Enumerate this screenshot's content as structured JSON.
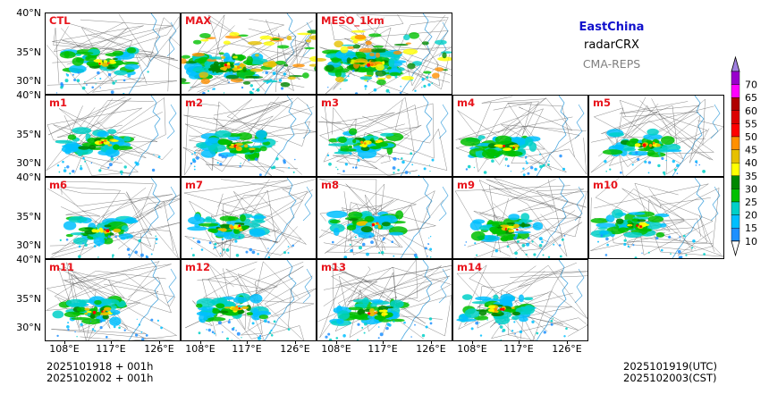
{
  "header": {
    "region": "EastChina",
    "product": "radarCRX",
    "system": "CMA-REPS",
    "region_color": "#1010cc",
    "product_color": "#000000",
    "system_color": "#808080"
  },
  "panels": [
    {
      "label": "CTL",
      "row": 0,
      "col": 0,
      "intensity": 1.0
    },
    {
      "label": "MAX",
      "row": 0,
      "col": 1,
      "intensity": 1.6
    },
    {
      "label": "MESO_1km",
      "row": 0,
      "col": 2,
      "intensity": 1.8
    },
    {
      "label": "m1",
      "row": 1,
      "col": 0,
      "intensity": 1.0
    },
    {
      "label": "m2",
      "row": 1,
      "col": 1,
      "intensity": 1.0
    },
    {
      "label": "m3",
      "row": 1,
      "col": 2,
      "intensity": 0.9
    },
    {
      "label": "m4",
      "row": 1,
      "col": 3,
      "intensity": 1.1
    },
    {
      "label": "m5",
      "row": 1,
      "col": 4,
      "intensity": 0.9
    },
    {
      "label": "m6",
      "row": 2,
      "col": 0,
      "intensity": 1.0
    },
    {
      "label": "m7",
      "row": 2,
      "col": 1,
      "intensity": 1.0
    },
    {
      "label": "m8",
      "row": 2,
      "col": 2,
      "intensity": 0.9
    },
    {
      "label": "m9",
      "row": 2,
      "col": 3,
      "intensity": 1.0
    },
    {
      "label": "m10",
      "row": 2,
      "col": 4,
      "intensity": 1.0
    },
    {
      "label": "m11",
      "row": 3,
      "col": 0,
      "intensity": 1.0
    },
    {
      "label": "m12",
      "row": 3,
      "col": 1,
      "intensity": 1.0
    },
    {
      "label": "m13",
      "row": 3,
      "col": 2,
      "intensity": 1.0
    },
    {
      "label": "m14",
      "row": 3,
      "col": 3,
      "intensity": 1.0
    }
  ],
  "axes": {
    "lat_ticks": [
      "40°N",
      "35°N",
      "30°N"
    ],
    "lon_ticks": [
      "108°E",
      "117°E",
      "126°E"
    ]
  },
  "colorbar": {
    "levels": [
      "10",
      "15",
      "20",
      "25",
      "30",
      "35",
      "40",
      "45",
      "50",
      "55",
      "60",
      "65",
      "70"
    ],
    "colors": [
      "#1e90ff",
      "#00bfff",
      "#00d0c8",
      "#00c000",
      "#008800",
      "#ffff00",
      "#e6c000",
      "#ff9000",
      "#ff0000",
      "#dd0000",
      "#b00000",
      "#ff00ff",
      "#9900cc",
      "#a080e0"
    ]
  },
  "footer": {
    "init_line1": "2025101918  +  001h",
    "init_line2": "2025102002  +  001h",
    "valid_utc": "2025101919(UTC)",
    "valid_cst": "2025102003(CST)"
  }
}
